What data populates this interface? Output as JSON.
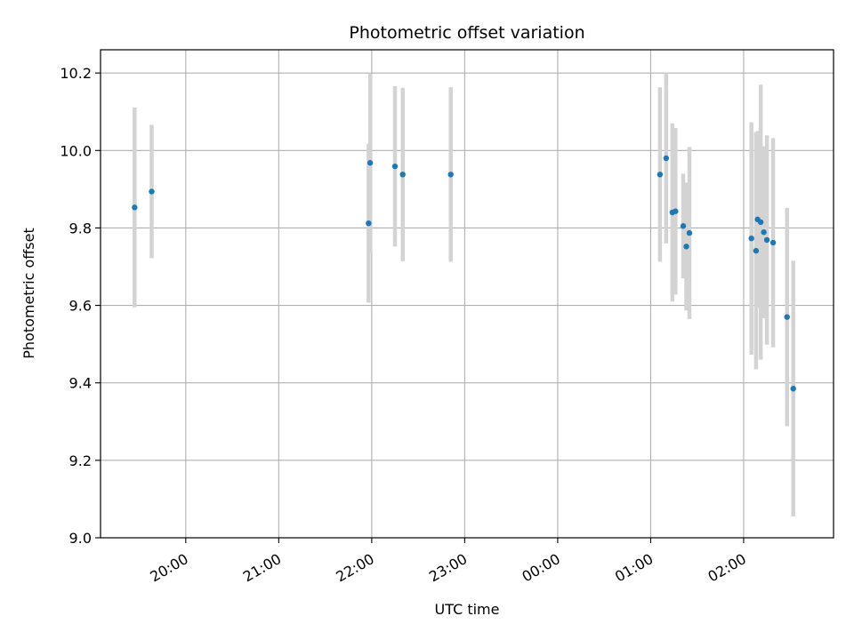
{
  "chart_data": {
    "type": "scatter",
    "title": "Photometric offset variation",
    "xlabel": "UTC time",
    "ylabel": "Photometric offset",
    "x_axis_type": "time",
    "xlim": [
      "19:05",
      "02:58"
    ],
    "ylim": [
      9.0,
      10.26
    ],
    "grid": true,
    "x_ticks": [
      {
        "time": "20:00",
        "label": "20:00"
      },
      {
        "time": "21:00",
        "label": "21:00"
      },
      {
        "time": "22:00",
        "label": "22:00"
      },
      {
        "time": "23:00",
        "label": "23:00"
      },
      {
        "time": "00:00",
        "label": "00:00"
      },
      {
        "time": "01:00",
        "label": "01:00"
      },
      {
        "time": "02:00",
        "label": "02:00"
      }
    ],
    "y_ticks": [
      {
        "value": 9.0,
        "label": "9.0"
      },
      {
        "value": 9.2,
        "label": "9.2"
      },
      {
        "value": 9.4,
        "label": "9.4"
      },
      {
        "value": 9.6,
        "label": "9.6"
      },
      {
        "value": 9.8,
        "label": "9.8"
      },
      {
        "value": 10.0,
        "label": "10.0"
      },
      {
        "value": 10.2,
        "label": "10.2"
      }
    ],
    "colors": {
      "marker": "#1f77b4",
      "errorbar": "#d3d3d3",
      "grid": "#b0b0b0"
    },
    "points": [
      {
        "time": "19:27",
        "y": 9.853,
        "err": 0.258
      },
      {
        "time": "19:38",
        "y": 9.894,
        "err": 0.172
      },
      {
        "time": "21:58",
        "y": 9.812,
        "err": 0.205
      },
      {
        "time": "21:59",
        "y": 9.968,
        "err": 0.23
      },
      {
        "time": "22:15",
        "y": 9.959,
        "err": 0.207
      },
      {
        "time": "22:20",
        "y": 9.938,
        "err": 0.224
      },
      {
        "time": "22:51",
        "y": 9.938,
        "err": 0.225
      },
      {
        "time": "01:06",
        "y": 9.938,
        "err": 0.225
      },
      {
        "time": "01:10",
        "y": 9.98,
        "err": 0.22
      },
      {
        "time": "01:14",
        "y": 9.84,
        "err": 0.23
      },
      {
        "time": "01:16",
        "y": 9.843,
        "err": 0.215
      },
      {
        "time": "01:21",
        "y": 9.805,
        "err": 0.135
      },
      {
        "time": "01:23",
        "y": 9.752,
        "err": 0.165
      },
      {
        "time": "01:25",
        "y": 9.787,
        "err": 0.222
      },
      {
        "time": "02:05",
        "y": 9.773,
        "err": 0.3
      },
      {
        "time": "02:08",
        "y": 9.741,
        "err": 0.306
      },
      {
        "time": "02:09",
        "y": 9.822,
        "err": 0.228
      },
      {
        "time": "02:11",
        "y": 9.815,
        "err": 0.355
      },
      {
        "time": "02:13",
        "y": 9.789,
        "err": 0.222
      },
      {
        "time": "02:15",
        "y": 9.769,
        "err": 0.27
      },
      {
        "time": "02:19",
        "y": 9.762,
        "err": 0.27
      },
      {
        "time": "02:28",
        "y": 9.57,
        "err": 0.282
      },
      {
        "time": "02:32",
        "y": 9.385,
        "err": 0.33
      }
    ]
  }
}
